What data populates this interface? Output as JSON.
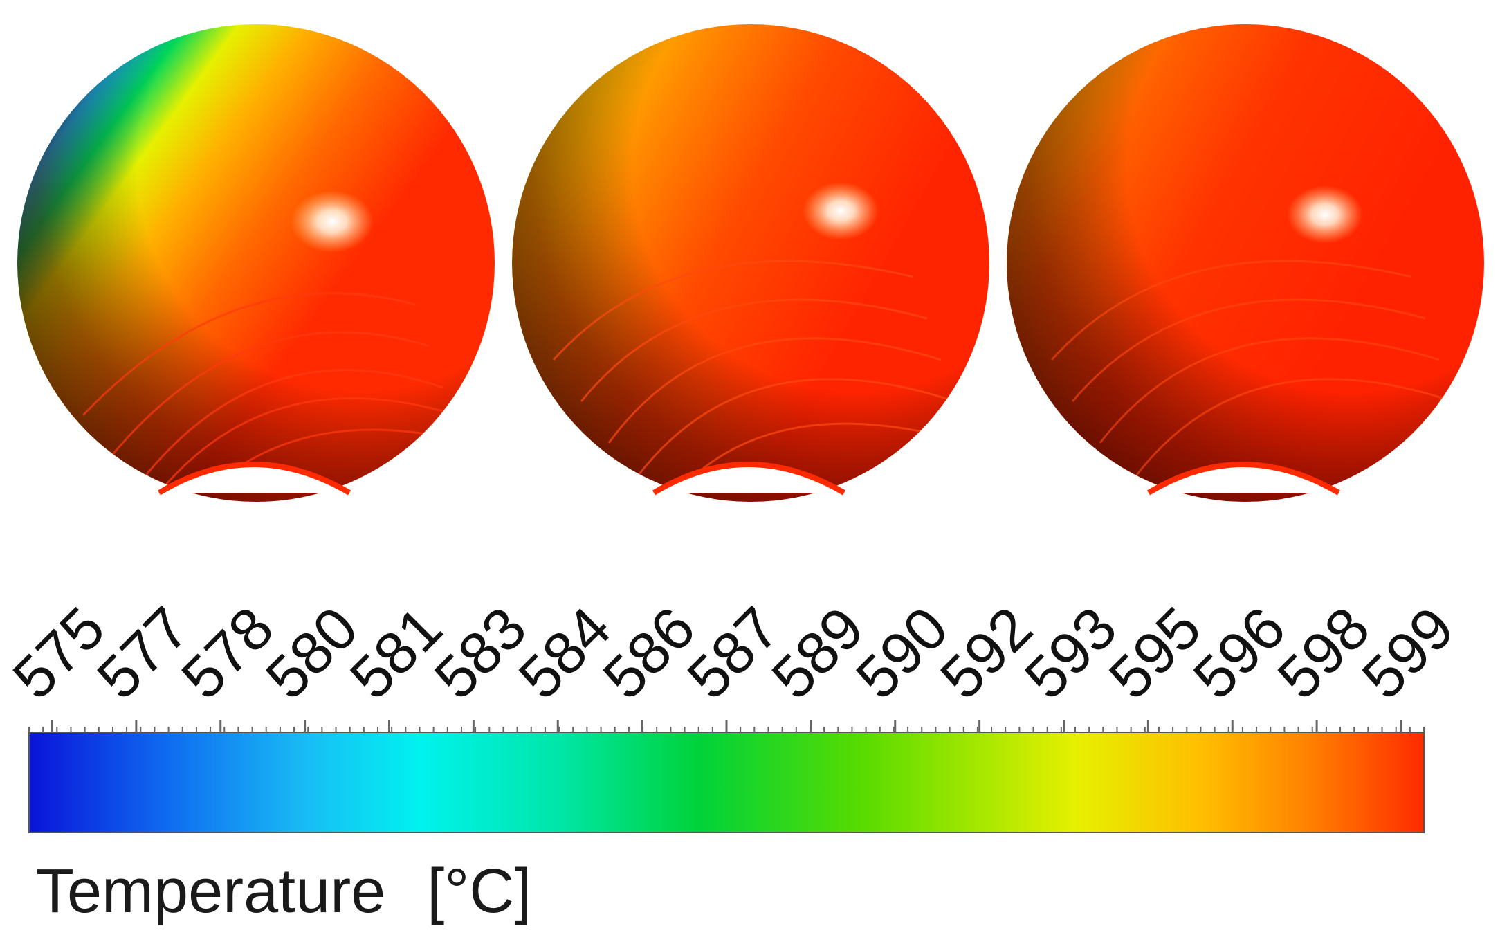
{
  "spheres": [
    {
      "id": "sphere-1",
      "cool_level": 1.0
    },
    {
      "id": "sphere-2",
      "cool_level": 0.35
    },
    {
      "id": "sphere-3",
      "cool_level": 0.15
    }
  ],
  "colorbar": {
    "ticks": [
      "575",
      "577",
      "578",
      "580",
      "581",
      "583",
      "584",
      "586",
      "587",
      "589",
      "590",
      "592",
      "593",
      "595",
      "596",
      "598",
      "599"
    ],
    "title": "Temperature",
    "unit": "[°C]",
    "gradient_colors": [
      "#0a14d8",
      "#0f6cf0",
      "#19bdf5",
      "#00f2ef",
      "#00e6a8",
      "#00d23a",
      "#5adc00",
      "#e6f000",
      "#ffbf00",
      "#ff7f00",
      "#ff2a00"
    ]
  }
}
